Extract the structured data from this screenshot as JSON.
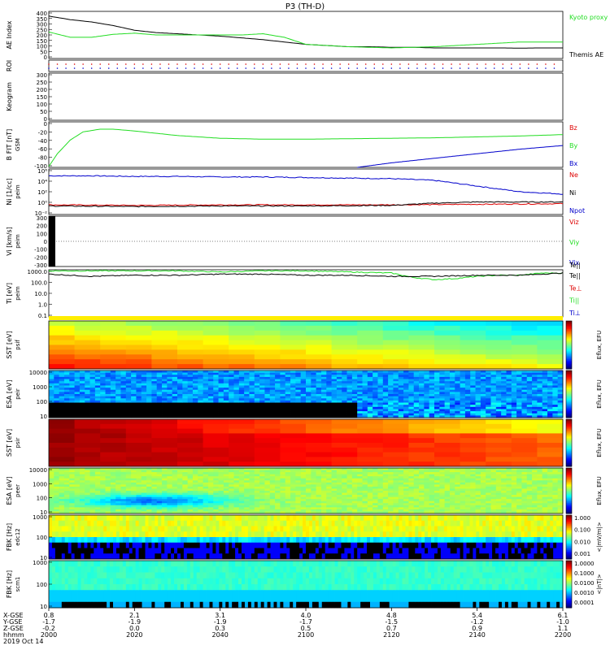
{
  "title": "P3 (TH-D)",
  "colors": {
    "black": "#000000",
    "green": "#22dd22",
    "red": "#dd0000",
    "blue": "#0000cc"
  },
  "chart_data": [
    {
      "id": "ae",
      "type": "line",
      "ylabel": "AE Index",
      "yticks": [
        "0",
        "50",
        "100",
        "150",
        "200",
        "250",
        "300",
        "350",
        "400"
      ],
      "ylim": [
        0,
        400
      ],
      "legend": [
        {
          "text": "Kyoto proxy AE",
          "color": "green"
        },
        {
          "text": "Themis AE",
          "color": "black"
        }
      ],
      "series": [
        {
          "name": "Themis AE",
          "color": "black",
          "x": [
            0,
            5,
            10,
            15,
            20,
            25,
            30,
            35,
            40,
            45,
            50,
            55,
            60,
            65,
            70,
            75,
            80,
            85,
            90,
            95,
            100,
            105,
            110,
            115,
            120
          ],
          "y": [
            360,
            330,
            310,
            280,
            240,
            220,
            210,
            200,
            190,
            175,
            160,
            140,
            120,
            110,
            100,
            100,
            95,
            95,
            90,
            90,
            90,
            90,
            88,
            90,
            90
          ]
        },
        {
          "name": "Kyoto proxy AE",
          "color": "green",
          "x": [
            0,
            5,
            10,
            15,
            20,
            25,
            30,
            35,
            40,
            45,
            50,
            55,
            60,
            65,
            70,
            75,
            80,
            85,
            90,
            95,
            100,
            105,
            110,
            115,
            120
          ],
          "y": [
            225,
            180,
            180,
            205,
            215,
            200,
            200,
            200,
            200,
            200,
            210,
            180,
            120,
            110,
            100,
            95,
            90,
            95,
            100,
            110,
            120,
            130,
            140,
            140,
            140
          ]
        }
      ]
    },
    {
      "id": "roi",
      "type": "scatter",
      "ylabel": "ROI",
      "legend": []
    },
    {
      "id": "keogram",
      "type": "line",
      "ylabel": "Keogram",
      "yticks": [
        "0",
        "50",
        "100",
        "150",
        "200",
        "250",
        "300"
      ],
      "ylim": [
        0,
        300
      ],
      "legend": []
    },
    {
      "id": "bfield",
      "type": "line",
      "ylabel": "B FIT [nT]",
      "ysublabel": "GSM",
      "yticks": [
        "-100",
        "-80",
        "-60",
        "-40",
        "-20",
        "0"
      ],
      "ylim": [
        -100,
        0
      ],
      "legend": [
        {
          "text": "Bz",
          "color": "red"
        },
        {
          "text": "By",
          "color": "green"
        },
        {
          "text": "Bx",
          "color": "blue"
        }
      ],
      "series": [
        {
          "name": "By",
          "color": "green",
          "x": [
            0,
            2,
            5,
            8,
            12,
            15,
            20,
            30,
            40,
            50,
            60,
            70,
            80,
            90,
            100,
            110,
            120
          ],
          "y": [
            -98,
            -70,
            -40,
            -22,
            -16,
            -16,
            -20,
            -30,
            -36,
            -38,
            -38,
            -37,
            -36,
            -35,
            -33,
            -31,
            -28
          ]
        },
        {
          "name": "Bx",
          "color": "blue",
          "x": [
            72,
            80,
            90,
            100,
            110,
            120
          ],
          "y": [
            -100,
            -90,
            -80,
            -70,
            -60,
            -52
          ]
        }
      ]
    },
    {
      "id": "density",
      "type": "line",
      "ylabel": "Ni [1/cc]",
      "ysublabel": "peim",
      "yticks": [
        "10⁻²",
        "10⁰",
        "10²",
        "10⁴",
        "10⁶"
      ],
      "ylim": [
        -2,
        6
      ],
      "legend": [
        {
          "text": "Ne",
          "color": "red"
        },
        {
          "text": "Ni",
          "color": "black"
        },
        {
          "text": "Npot",
          "color": "blue"
        }
      ],
      "series": [
        {
          "name": "Npot",
          "color": "blue",
          "x": [
            0,
            10,
            20,
            30,
            40,
            50,
            60,
            70,
            80,
            90,
            95,
            100,
            105,
            110,
            115,
            120
          ],
          "y": [
            4.8,
            4.8,
            4.7,
            4.7,
            4.6,
            4.6,
            4.5,
            4.4,
            4.3,
            4.0,
            3.5,
            3.0,
            2.5,
            2.0,
            1.8,
            1.6
          ]
        },
        {
          "name": "Ne",
          "color": "red",
          "x": [
            0,
            20,
            40,
            60,
            80,
            100,
            120
          ],
          "y": [
            -0.3,
            -0.4,
            -0.3,
            -0.3,
            -0.3,
            -0.2,
            -0.1
          ]
        },
        {
          "name": "Ni",
          "color": "black",
          "x": [
            0,
            20,
            40,
            60,
            80,
            90,
            100,
            110,
            120
          ],
          "y": [
            -0.5,
            -0.6,
            -0.5,
            -0.5,
            -0.4,
            0.0,
            0.2,
            0.2,
            0.2
          ]
        }
      ]
    },
    {
      "id": "velocity",
      "type": "line",
      "ylabel": "Vi [km/s]",
      "ysublabel": "peim",
      "yticks": [
        "-300",
        "-200",
        "-100",
        "0",
        "100",
        "200",
        "300"
      ],
      "ylim": [
        -300,
        300
      ],
      "legend": [
        {
          "text": "Viz",
          "color": "red"
        },
        {
          "text": "Viy",
          "color": "green"
        },
        {
          "text": "Vix",
          "color": "blue"
        }
      ]
    },
    {
      "id": "temperature",
      "type": "line",
      "ylabel": "Ti [eV]",
      "ysublabel": "peim",
      "yticks": [
        "0.1",
        "1.0",
        "10.0",
        "100.0",
        "1000.0"
      ],
      "ylim": [
        -1,
        3.3
      ],
      "legend": [
        {
          "text": "Te||",
          "color": "black"
        },
        {
          "text": "Te⊥",
          "color": "red"
        },
        {
          "text": "Ti||",
          "color": "green"
        },
        {
          "text": "Ti⊥",
          "color": "blue"
        }
      ],
      "series": [
        {
          "name": "Ti||",
          "color": "green",
          "x": [
            0,
            10,
            20,
            30,
            40,
            50,
            60,
            70,
            80,
            85,
            90,
            95,
            100,
            105,
            110,
            115,
            120
          ],
          "y": [
            3.2,
            3.2,
            3.2,
            3.2,
            3.1,
            3.2,
            3.2,
            3.1,
            3.0,
            2.6,
            2.4,
            2.5,
            2.7,
            2.8,
            2.8,
            3.0,
            3.0
          ]
        },
        {
          "name": "Te||",
          "color": "black",
          "x": [
            0,
            10,
            20,
            30,
            40,
            50,
            60,
            70,
            80,
            90,
            100,
            110,
            120
          ],
          "y": [
            2.9,
            2.7,
            2.8,
            2.8,
            2.9,
            2.9,
            2.8,
            2.8,
            2.7,
            2.7,
            2.8,
            2.8,
            3.0
          ]
        }
      ]
    },
    {
      "id": "sst1",
      "type": "heatmap",
      "ylabel": "SST [eV]",
      "ysublabel": "psif",
      "cbar_label": "Eflux, EFU"
    },
    {
      "id": "esa1",
      "type": "heatmap",
      "ylabel": "ESA [eV]",
      "ysublabel": "peir",
      "yticks": [
        "10",
        "100",
        "1000",
        "10000"
      ],
      "cbar_label": "Eflux, EFU"
    },
    {
      "id": "sst2",
      "type": "heatmap",
      "ylabel": "SST [eV]",
      "ysublabel": "psir",
      "cbar_label": "Eflux, EFU"
    },
    {
      "id": "esa2",
      "type": "heatmap",
      "ylabel": "ESA [eV]",
      "ysublabel": "peer",
      "yticks": [
        "10",
        "100",
        "1000",
        "10000"
      ],
      "cbar_label": "Eflux, EFU"
    },
    {
      "id": "fbk1",
      "type": "heatmap",
      "ylabel": "FBK [Hz]",
      "ysublabel": "edc12",
      "yticks": [
        "10",
        "100",
        "1000"
      ],
      "cbar_label": "<|mV/m|>",
      "cbar_ticks": [
        "1.000",
        "0.100",
        "0.010",
        "0.001"
      ]
    },
    {
      "id": "fbk2",
      "type": "heatmap",
      "ylabel": "FBK [Hz]",
      "ysublabel": "scm1",
      "yticks": [
        "10",
        "100",
        "1000"
      ],
      "cbar_label": "<|nT|>",
      "cbar_ticks": [
        "1.0000",
        "0.1000",
        "0.0100",
        "0.0010",
        "0.0001"
      ]
    }
  ],
  "xaxis": {
    "rows": [
      {
        "label": "X-GSE",
        "values": [
          "0.8",
          "2.1",
          "3.1",
          "4.0",
          "4.8",
          "5.4",
          "6.1"
        ]
      },
      {
        "label": "Y-GSE",
        "values": [
          "-1.7",
          "-1.9",
          "-1.9",
          "-1.7",
          "-1.5",
          "-1.2",
          "-1.0"
        ]
      },
      {
        "label": "Z-GSE",
        "values": [
          "-0.2",
          "0.0",
          "0.3",
          "0.5",
          "0.7",
          "0.9",
          "1.1"
        ]
      },
      {
        "label": "hhmm",
        "values": [
          "2000",
          "2020",
          "2040",
          "2100",
          "2120",
          "2140",
          "2200"
        ]
      }
    ],
    "date": "2019 Oct 14"
  }
}
